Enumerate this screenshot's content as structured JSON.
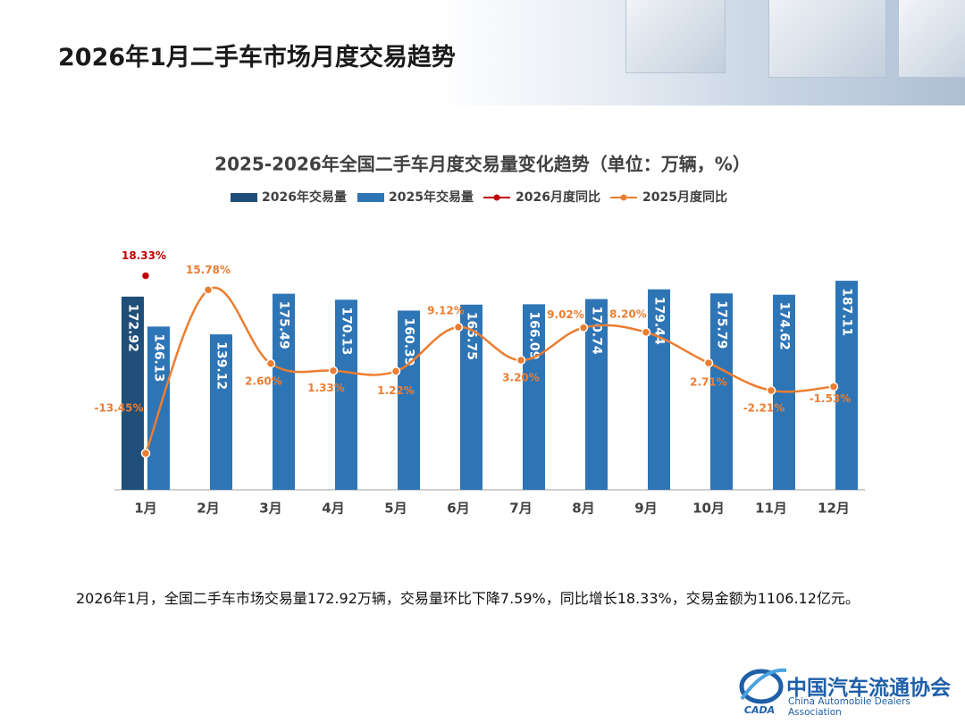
{
  "header": {
    "title": "2026年1月二手车市场月度交易趋势"
  },
  "chart_data": {
    "type": "bar",
    "title": "2025-2026年全国二手车月度交易量变化趋势（单位：万辆，%）",
    "categories": [
      "1月",
      "2月",
      "3月",
      "4月",
      "5月",
      "6月",
      "7月",
      "8月",
      "9月",
      "10月",
      "11月",
      "12月"
    ],
    "series": [
      {
        "name": "2026年交易量",
        "type": "bar",
        "color": "#1f4e79",
        "values": [
          172.92,
          null,
          null,
          null,
          null,
          null,
          null,
          null,
          null,
          null,
          null,
          null
        ]
      },
      {
        "name": "2025年交易量",
        "type": "bar",
        "color": "#2e75b6",
        "values": [
          146.13,
          139.12,
          175.49,
          170.13,
          160.39,
          165.75,
          166.09,
          170.74,
          179.44,
          175.79,
          174.62,
          187.11
        ]
      },
      {
        "name": "2026月度同比",
        "type": "line",
        "axis": "y2",
        "color": "#c00000",
        "values": [
          18.33,
          null,
          null,
          null,
          null,
          null,
          null,
          null,
          null,
          null,
          null,
          null
        ],
        "value_labels": [
          "18.33%",
          null,
          null,
          null,
          null,
          null,
          null,
          null,
          null,
          null,
          null,
          null
        ]
      },
      {
        "name": "2025月度同比",
        "type": "line",
        "axis": "y2",
        "color": "#ed7d31",
        "values": [
          -13.45,
          15.78,
          2.6,
          1.33,
          1.22,
          9.12,
          3.2,
          9.02,
          8.2,
          2.71,
          -2.21,
          -1.53
        ],
        "value_labels": [
          "-13.45%",
          "15.78%",
          "2.60%",
          "1.33%",
          "1.22%",
          "9.12%",
          "3.20%",
          "9.02%",
          "8.20%",
          "2.71%",
          "-2.21%",
          "-1.53%"
        ]
      }
    ],
    "ylim": [
      0,
      200
    ],
    "y2lim": [
      -20,
      20
    ],
    "legend": "top"
  },
  "summary": "2026年1月，全国二手车市场交易量172.92万辆，交易量环比下降7.59%，同比增长18.33%，交易金额为1106.12亿元。",
  "logo": {
    "abbr": "CADA",
    "name": "中国汽车流通协会",
    "english": "China Automobile Dealers Association"
  }
}
